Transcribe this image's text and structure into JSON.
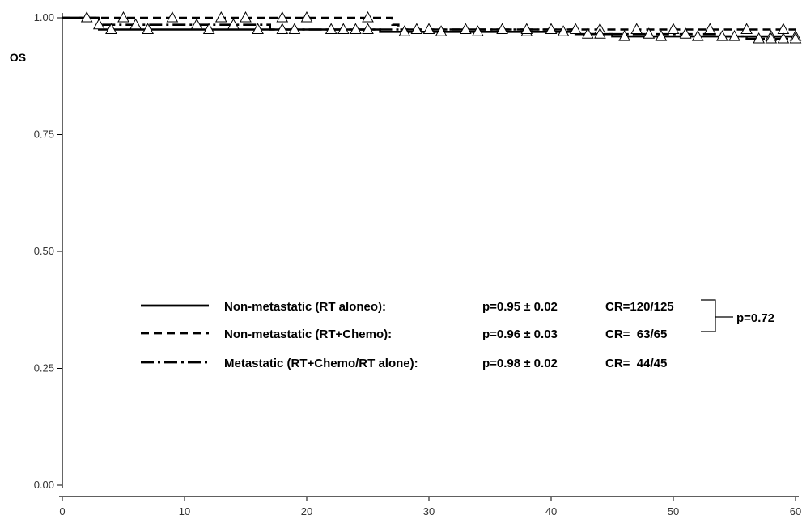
{
  "chart_data": {
    "type": "line",
    "title": "",
    "xlabel": "",
    "ylabel": "OS",
    "xlim": [
      0,
      60
    ],
    "ylim": [
      0,
      1
    ],
    "x_ticks": [
      "0",
      "10",
      "20",
      "30",
      "40",
      "50",
      "60"
    ],
    "y_ticks": [
      "0.00",
      "0.25",
      "0.50",
      "0.75",
      "1.00"
    ],
    "grid": false,
    "legend_position": "center",
    "series": [
      {
        "name": "Non-metastatic (RT aloneo):",
        "stat": "p=0.95 ±  0.02",
        "cr": "CR=120/125",
        "line_style": "solid",
        "points": [
          [
            0,
            1.0
          ],
          [
            3,
            1.0
          ],
          [
            3,
            0.975
          ],
          [
            26,
            0.975
          ],
          [
            26,
            0.97
          ],
          [
            42,
            0.97
          ],
          [
            42,
            0.965
          ],
          [
            45,
            0.965
          ],
          [
            45,
            0.96
          ],
          [
            60,
            0.96
          ]
        ],
        "censored": [
          [
            4,
            0.975
          ],
          [
            7,
            0.975
          ],
          [
            12,
            0.975
          ],
          [
            16,
            0.975
          ],
          [
            19,
            0.975
          ],
          [
            22,
            0.975
          ],
          [
            24,
            0.975
          ],
          [
            28,
            0.97
          ],
          [
            31,
            0.97
          ],
          [
            34,
            0.97
          ],
          [
            38,
            0.97
          ],
          [
            41,
            0.97
          ],
          [
            43,
            0.965
          ],
          [
            46,
            0.96
          ],
          [
            49,
            0.96
          ],
          [
            52,
            0.96
          ],
          [
            55,
            0.96
          ],
          [
            58,
            0.96
          ],
          [
            60,
            0.96
          ]
        ]
      },
      {
        "name": "Non-metastatic (RT+Chemo):",
        "stat": "p=0.96 ± 0.03",
        "cr": "CR=  63/65",
        "line_style": "dashed",
        "points": [
          [
            0,
            1.0
          ],
          [
            27,
            1.0
          ],
          [
            27,
            0.985
          ],
          [
            27.5,
            0.985
          ],
          [
            27.5,
            0.975
          ],
          [
            60,
            0.975
          ]
        ],
        "censored": [
          [
            2,
            1.0
          ],
          [
            5,
            1.0
          ],
          [
            9,
            1.0
          ],
          [
            13,
            1.0
          ],
          [
            15,
            1.0
          ],
          [
            18,
            1.0
          ],
          [
            20,
            1.0
          ],
          [
            25,
            1.0
          ],
          [
            29,
            0.975
          ],
          [
            33,
            0.975
          ],
          [
            38,
            0.975
          ],
          [
            42,
            0.975
          ],
          [
            44,
            0.975
          ],
          [
            47,
            0.975
          ],
          [
            50,
            0.975
          ],
          [
            53,
            0.975
          ],
          [
            56,
            0.975
          ],
          [
            59,
            0.975
          ]
        ]
      },
      {
        "name": "Metastatic (RT+Chemo/RT alone):",
        "stat": "p=0.98 ± 0.02",
        "cr": "CR=  44/45",
        "line_style": "dashdot",
        "points": [
          [
            0,
            1.0
          ],
          [
            3,
            1.0
          ],
          [
            3,
            0.985
          ],
          [
            17,
            0.985
          ],
          [
            17,
            0.975
          ],
          [
            42,
            0.975
          ],
          [
            42,
            0.965
          ],
          [
            54,
            0.965
          ],
          [
            54,
            0.96
          ],
          [
            56,
            0.96
          ],
          [
            56,
            0.955
          ],
          [
            60,
            0.955
          ]
        ],
        "censored": [
          [
            3,
            0.985
          ],
          [
            6,
            0.985
          ],
          [
            11,
            0.985
          ],
          [
            14,
            0.985
          ],
          [
            18,
            0.975
          ],
          [
            23,
            0.975
          ],
          [
            25,
            0.975
          ],
          [
            30,
            0.975
          ],
          [
            36,
            0.975
          ],
          [
            40,
            0.975
          ],
          [
            44,
            0.965
          ],
          [
            48,
            0.965
          ],
          [
            51,
            0.965
          ],
          [
            54,
            0.96
          ],
          [
            57,
            0.955
          ],
          [
            58,
            0.955
          ],
          [
            59,
            0.955
          ],
          [
            60,
            0.955
          ]
        ]
      }
    ],
    "annotations": [
      {
        "text": "p=0.72",
        "refers_to": [
          "Non-metastatic (RT aloneo):",
          "Non-metastatic (RT+Chemo):"
        ]
      }
    ]
  }
}
